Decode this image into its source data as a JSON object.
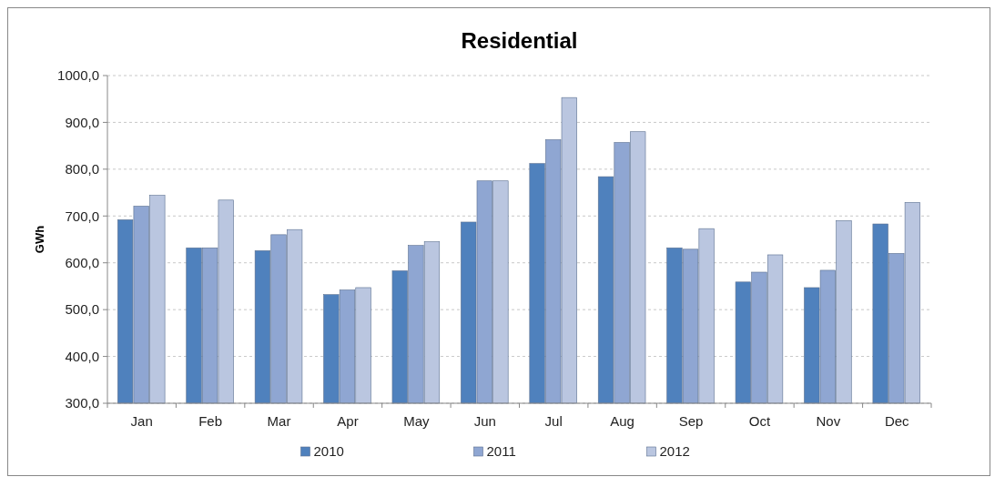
{
  "chart_data": {
    "type": "bar",
    "title": "Residential",
    "ylabel": "GWh",
    "categories": [
      "Jan",
      "Feb",
      "Mar",
      "Apr",
      "May",
      "Jun",
      "Jul",
      "Aug",
      "Sep",
      "Oct",
      "Nov",
      "Dec"
    ],
    "series": [
      {
        "name": "2010",
        "color": "#4f81bd",
        "values": [
          692,
          632,
          626,
          532,
          583,
          687,
          812,
          784,
          632,
          559,
          547,
          683
        ]
      },
      {
        "name": "2011",
        "color": "#8fa6d2",
        "values": [
          721,
          632,
          660,
          542,
          637,
          775,
          863,
          857,
          629,
          580,
          584,
          620
        ]
      },
      {
        "name": "2012",
        "color": "#bac6e0",
        "values": [
          744,
          734,
          671,
          547,
          645,
          775,
          953,
          880,
          673,
          617,
          690,
          729
        ]
      }
    ],
    "ylim": [
      300,
      1000
    ],
    "yticks": [
      {
        "value": 300,
        "label": "300,0"
      },
      {
        "value": 400,
        "label": "400,0"
      },
      {
        "value": 500,
        "label": "500,0"
      },
      {
        "value": 600,
        "label": "600,0"
      },
      {
        "value": 700,
        "label": "700,0"
      },
      {
        "value": 800,
        "label": "800,0"
      },
      {
        "value": 900,
        "label": "900,0"
      },
      {
        "value": 1000,
        "label": "1000,0"
      }
    ],
    "grid": "y",
    "legend": "bottom"
  }
}
